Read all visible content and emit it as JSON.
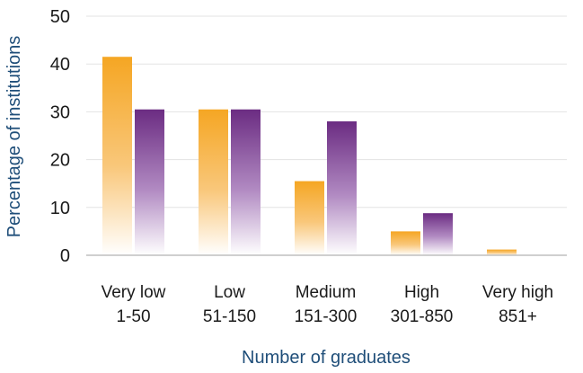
{
  "chart_data": {
    "type": "bar",
    "title": "",
    "xlabel": "Number of graduates",
    "ylabel": "Percentage of institutions",
    "ylim": [
      0,
      50
    ],
    "yticks": [
      "0",
      "10",
      "20",
      "30",
      "40",
      "50"
    ],
    "grid": true,
    "categories": [
      {
        "line1": "Very low",
        "line2": "1-50"
      },
      {
        "line1": "Low",
        "line2": "51-150"
      },
      {
        "line1": "Medium",
        "line2": "151-300"
      },
      {
        "line1": "High",
        "line2": "301-850"
      },
      {
        "line1": "Very high",
        "line2": "851+"
      }
    ],
    "series": [
      {
        "color": "#f5a623",
        "values": [
          41.5,
          30.5,
          15.5,
          5,
          1.2
        ]
      },
      {
        "color": "#6b2c82",
        "values": [
          30.5,
          30.5,
          28,
          8.8,
          0
        ]
      }
    ]
  }
}
